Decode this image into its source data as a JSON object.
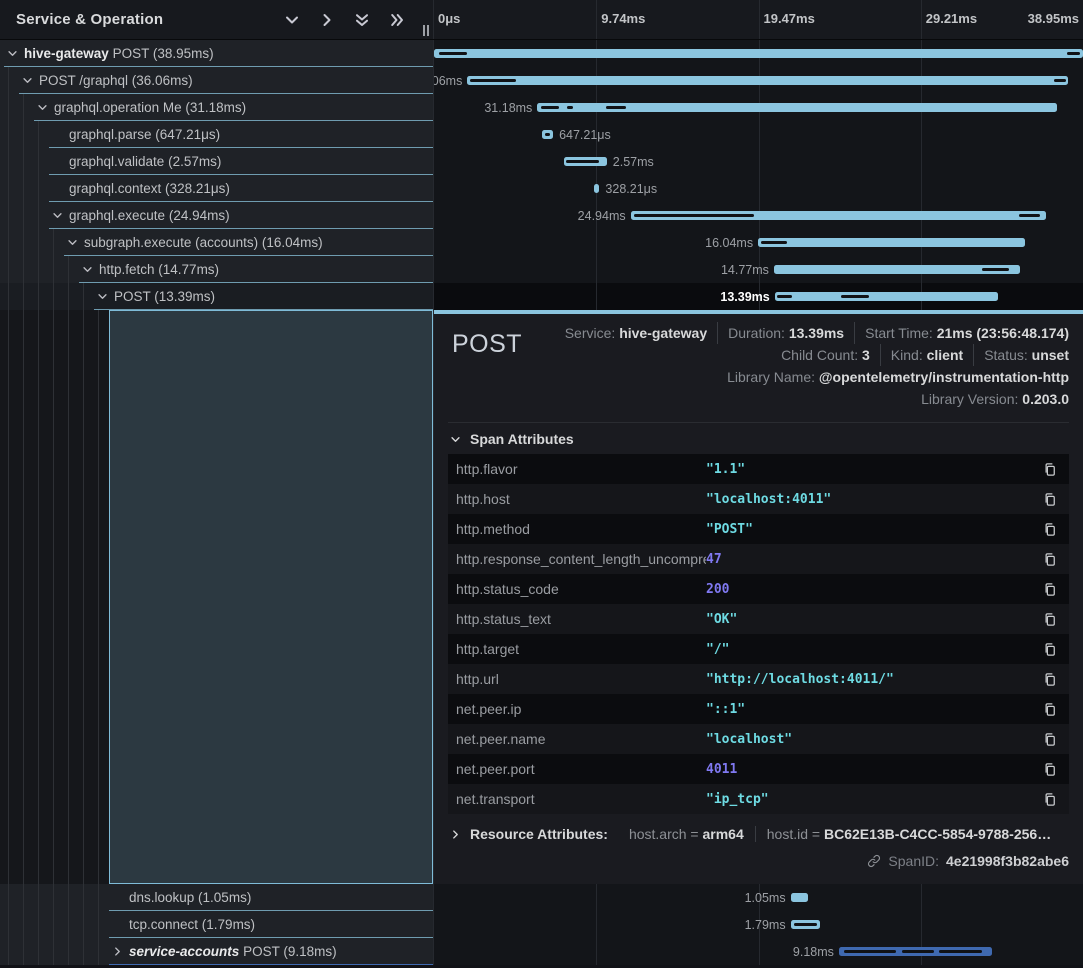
{
  "header": {
    "title": "Service & Operation",
    "icons": [
      "chevron-down",
      "chevron-right",
      "double-chevron-down",
      "double-chevron-right"
    ],
    "ruler_ticks": [
      {
        "label": "0μs",
        "pos": 0
      },
      {
        "label": "9.74ms",
        "pos": 0.25
      },
      {
        "label": "19.47ms",
        "pos": 0.5
      },
      {
        "label": "29.21ms",
        "pos": 0.75
      },
      {
        "label": "38.95ms",
        "pos": 1
      }
    ]
  },
  "colors": {
    "bar_primary": "#8bc5df",
    "bar_secondary": "#3f69b0",
    "underline_primary": "#8bc5dfbf",
    "underline_secondary": "#3f69b0",
    "string_value": "#6edbe3",
    "number_value": "#8079f2"
  },
  "trace": {
    "total_ms": 38.95,
    "gridline_positions": [
      0.25,
      0.5,
      0.75
    ],
    "spans": [
      {
        "service": "hive-gateway",
        "operation": "POST",
        "duration": "38.95ms",
        "depth": 0,
        "icon": "down",
        "start_ms": 0,
        "duration_ms": 38.95,
        "label_side": "left",
        "dark_segments": [
          [
            0.3,
            2.0
          ],
          [
            38.0,
            38.8
          ]
        ]
      },
      {
        "operation": "POST /graphql",
        "duration": "36.06ms",
        "depth": 1,
        "icon": "down",
        "start_ms": 2.0,
        "duration_ms": 36.06,
        "label_side": "left",
        "dark_segments": [
          [
            2.15,
            4.9
          ],
          [
            37.2,
            37.95
          ]
        ]
      },
      {
        "operation": "graphql.operation Me",
        "duration": "31.18ms",
        "depth": 2,
        "icon": "down",
        "start_ms": 6.2,
        "duration_ms": 31.18,
        "label_side": "left",
        "dark_segments": [
          [
            6.4,
            7.5
          ],
          [
            8.0,
            8.35
          ],
          [
            10.3,
            11.5
          ]
        ]
      },
      {
        "operation": "graphql.parse",
        "duration": "647.21μs",
        "depth": 3,
        "icon": null,
        "start_ms": 6.5,
        "duration_ms": 0.647,
        "label_side": "right",
        "dark_segments": [
          [
            6.65,
            6.95
          ]
        ]
      },
      {
        "operation": "graphql.validate",
        "duration": "2.57ms",
        "depth": 3,
        "icon": null,
        "start_ms": 7.8,
        "duration_ms": 2.57,
        "label_side": "right",
        "dark_segments": [
          [
            7.95,
            9.9
          ]
        ]
      },
      {
        "operation": "graphql.context",
        "duration": "328.21μs",
        "depth": 3,
        "icon": null,
        "start_ms": 9.6,
        "duration_ms": 0.328,
        "label_side": "right",
        "dark_segments": []
      },
      {
        "operation": "graphql.execute",
        "duration": "24.94ms",
        "depth": 3,
        "icon": "down",
        "start_ms": 11.8,
        "duration_ms": 24.94,
        "label_side": "left",
        "dark_segments": [
          [
            12.0,
            19.2
          ],
          [
            35.1,
            36.4
          ]
        ]
      },
      {
        "operation": "subgraph.execute (accounts)",
        "duration": "16.04ms",
        "depth": 4,
        "icon": "down",
        "start_ms": 19.45,
        "duration_ms": 16.04,
        "label_side": "left",
        "dark_segments": [
          [
            19.6,
            21.2
          ]
        ]
      },
      {
        "operation": "http.fetch",
        "duration": "14.77ms",
        "depth": 5,
        "icon": "down",
        "start_ms": 20.4,
        "duration_ms": 14.77,
        "label_side": "left",
        "dark_segments": [
          [
            32.9,
            34.5
          ]
        ]
      },
      {
        "operation": "POST",
        "duration": "13.39ms",
        "depth": 6,
        "icon": "down",
        "start_ms": 20.45,
        "duration_ms": 13.39,
        "label_side": "left",
        "selected": true,
        "dark_segments": [
          [
            20.6,
            21.5
          ],
          [
            24.4,
            26.1
          ]
        ]
      }
    ],
    "tail_spans": [
      {
        "operation": "dns.lookup",
        "duration": "1.05ms",
        "depth": 7,
        "icon": null,
        "start_ms": 21.4,
        "duration_ms": 1.05,
        "label_side": "left",
        "dark_segments": []
      },
      {
        "operation": "tcp.connect",
        "duration": "1.79ms",
        "depth": 7,
        "icon": null,
        "start_ms": 21.4,
        "duration_ms": 1.79,
        "label_side": "left",
        "dark_segments": [
          [
            21.6,
            23.0
          ]
        ]
      },
      {
        "service": "service-accounts",
        "service_italic": true,
        "operation": "POST",
        "duration": "9.18ms",
        "depth": 7,
        "icon": "right",
        "start_ms": 24.3,
        "duration_ms": 9.18,
        "label_side": "left",
        "color": "secondary",
        "dark_segments": [
          [
            24.6,
            27.7
          ],
          [
            28.1,
            30.0
          ],
          [
            30.3,
            32.9
          ]
        ]
      }
    ]
  },
  "detail": {
    "title": "POST",
    "meta_lines": [
      [
        {
          "label": "Service:",
          "value": "hive-gateway"
        },
        {
          "label": "Duration:",
          "value": "13.39ms"
        },
        {
          "label": "Start Time:",
          "value": "21ms (23:56:48.174)"
        }
      ],
      [
        {
          "label": "Child Count:",
          "value": "3"
        },
        {
          "label": "Kind:",
          "value": "client"
        },
        {
          "label": "Status:",
          "value": "unset"
        }
      ],
      [
        {
          "label": "Library Name:",
          "value": "@opentelemetry/instrumentation-http"
        }
      ],
      [
        {
          "label": "Library Version:",
          "value": "0.203.0"
        }
      ]
    ],
    "attributes_title": "Span Attributes",
    "attributes": [
      {
        "key": "http.flavor",
        "value": "\"1.1\"",
        "type": "string"
      },
      {
        "key": "http.host",
        "value": "\"localhost:4011\"",
        "type": "string"
      },
      {
        "key": "http.method",
        "value": "\"POST\"",
        "type": "string"
      },
      {
        "key": "http.response_content_length_uncompressed",
        "value": "47",
        "type": "number"
      },
      {
        "key": "http.status_code",
        "value": "200",
        "type": "number"
      },
      {
        "key": "http.status_text",
        "value": "\"OK\"",
        "type": "string"
      },
      {
        "key": "http.target",
        "value": "\"/\"",
        "type": "string"
      },
      {
        "key": "http.url",
        "value": "\"http://localhost:4011/\"",
        "type": "string"
      },
      {
        "key": "net.peer.ip",
        "value": "\"::1\"",
        "type": "string"
      },
      {
        "key": "net.peer.name",
        "value": "\"localhost\"",
        "type": "string"
      },
      {
        "key": "net.peer.port",
        "value": "4011",
        "type": "number"
      },
      {
        "key": "net.transport",
        "value": "\"ip_tcp\"",
        "type": "string"
      }
    ],
    "resource": {
      "title": "Resource Attributes:",
      "pairs": [
        {
          "key": "host.arch",
          "value": "arm64"
        },
        {
          "key": "host.id",
          "value": "BC62E13B-C4CC-5854-9788-256…"
        }
      ]
    },
    "span_id_label": "SpanID:",
    "span_id": "4e21998f3b82abe6"
  }
}
